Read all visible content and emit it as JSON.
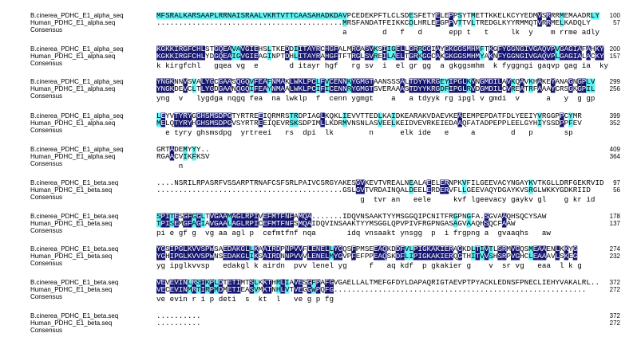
{
  "blocks": [
    {
      "rows": [
        {
          "name": "B.cinerea_PDHC_E1_alpha_seq",
          "sequence": "MFSRALKARSAAPLRRNAISRAALVKRTVTTCAASAHADKDAVPCEDEKPFTLCLSDESFETYELEPPSYTMETTKKELKCYYEDMVSRRRMEMAADRLY",
          "end": "100"
        },
        {
          "name": "Human_PDHC_E1_alpha.seq",
          "sequence": "..........................................MRSFANDATFEIKKCDLHRLEEGPPVTTVLTREDGLKYYRMMQTVRRMELKADQLY",
          "end": "57"
        }
      ],
      "consensus_label": "Consensus",
      "consensus": "                                          a        d   f   d      epp t   t     lk  y    m rrme adly"
    },
    {
      "rows": [
        {
          "name": "B.cinerea_PDHC_E1_alpha_seq",
          "sequence": "KGKKIRGFCHLSTGQEAVAVGIEHSLTKEDDIITAYRCHGFALMRGASVKSIIGELLGRRGGIAYGKGGSMHMFTKGFYGGNGIVGAQVPVGAGIAFAHKY",
          "end": "200"
        },
        {
          "name": "Human_PDHC_E1_alpha.seq",
          "sequence": "KGKKIRGFCHLYDGQEAIGVGIEAGINPTDHLITAYRAHGFTFTRGLSVREILAELTGRKGGCAKGKGGSMHMYAKNFYGGNGIVGAQVPLGAGIALACKY",
          "end": "157"
        }
      ],
      "consensus_label": "Consensus",
      "consensus": "k kirgfchl   gqea vg  e       d itayr hgf   rg sv  i  el gr gg  a gkggsmhm  k fyggngi gaqvp gag ia  ky"
    },
    {
      "rows": [
        {
          "name": "B.cinerea_PDHC_E1_alpha_seq",
          "sequence": "YNGKNNVSVALYGCGAASQGQVFEAFNMAKLWKLPCLFVCENNKYGMGTAANSSSALTDYYKRGEYIPGLKVNGMDILAVKQAVKHAKEYANAGNGPLV",
          "end": "299"
        },
        {
          "name": "Human_PDHC_E1_alpha.seq",
          "sequence": "YNGKDEVCLTLYGDGAANQGQIFEAYNMAALWKLPCIFICENNRYGMGTSVERAAASTDYYKRGDFIPGLRVDGMDILCVREATRFAAAYCRSGKGPIL",
          "end": "256"
        }
      ],
      "consensus_label": "Consensus",
      "consensus": "yng  v   lygdga nqgq fea  na lwklp  f  cenn ygmgt    a   a tdyyk rg ipgl v gmdi  v      a   y  g gp"
    },
    {
      "rows": [
        {
          "name": "B.cinerea_PDHC_E1_alpha_seq",
          "sequence": "LEYVTYRYGGHSMSDPGTYRTREEIQRMRSTRDPIAGLKQKLIEVVTTEDLKAIDKEARAKVDAEVKEAEEMPEPDATFDLYEEIYVRGGPPCYMR",
          "end": "399"
        },
        {
          "name": "Human_PDHC_E1_alpha.seq",
          "sequence": "MELQTYRYHGHSMSDPGVSYRTREEIQEVRSKSDPIMLLKDRMVNSNLASVEELKEIDVEVRKEIEDAAQFATADPEPPLEELGYHIYSSDPPFEV",
          "end": "352"
        }
      ],
      "consensus_label": "Consensus",
      "consensus": "  e tyry ghsmsdpg  yrtreei   rs  dpi  lk        n      elk ide   e     a        d   p       sp"
    },
    {
      "rows": [
        {
          "name": "B.cinerea_PDHC_E1_alpha_seq",
          "sequence": "GRTADEMYYY..",
          "end": "409"
        },
        {
          "name": "Human_PDHC_E1_alpha.seq",
          "sequence": "RGAACVIKFKSV",
          "end": "364"
        }
      ],
      "consensus_label": "Consensus",
      "consensus": "     n"
    },
    {
      "rows": [
        {
          "name": "B.cinerea_PDHC_E1_beta.seq",
          "sequence": "....NSRILRPASRFVSSARPTRNAFCSFSRLPAIVCSRGYAKESGVKEVTVREALNEALAEELERNPKVFILGEEVACYNGAYKVTKGLLDRFGEKRVID",
          "end": "97"
        },
        {
          "name": "Human_PDHC_E1_beta.seq",
          "sequence": "..........................................GSLGVTVRDAINQALDEELERDERVFLLGEEVAQYDGAYKVSRGLWKKYGDKRIID",
          "end": "56"
        }
      ],
      "consensus_label": "Consensus",
      "consensus": "                                              g  tvr an   eele     kvf lgeevacy gaykv gl    g kr id"
    },
    {
      "rows": [
        {
          "name": "B.cinerea_PDHC_E1_beta.seq",
          "sequence": "SPITESGFGGLTVGAAMAGLRPIVEFMTFNFAMQA.......IDQVNSAAKTYYMSGGQIPCNITFRGPNGFA.SGVAAQHSQCYSAW",
          "end": "178"
        },
        {
          "name": "Human_PDHC_E1_beta.seq",
          "sequence": "TPISEMGFAGIAVGAALAGLRPICEFMTFNFSMQAIDQVINSAAKTYYMSGGLQPVPIVFRGPNGASAGVAAQHSQCFAAW",
          "end": "137"
        }
      ],
      "consensus_label": "Consensus",
      "consensus": "pi e gf g  vg aa agl p  cefmtfnf nqa       idq vnsaakt ynsgg  p  i frgpng a  gvaaqhs   aw"
    },
    {
      "rows": [
        {
          "name": "B.cinerea_PDHC_E1_beta.seq",
          "sequence": "YGSIPGLKVVSPWSAEDAKGLLKAAIRDPNPVVFLENELLYGQSFPMSEEAQKDDFVLPIGKAKIERAGKDLTIVTLSRMVGQSMEAAENLKKYG",
          "end": "274"
        },
        {
          "name": "Human_PDHC_E1_beta.seq",
          "sequence": "YGHIPGLKVVSPWNSEDAKGLIKSAIRDNNPVVVLENELMYGVPFEFPPEAQSKDFLIPIGKAKIERQGTHITVVSHSRPVGHCLEAAAVLSKEG",
          "end": "232"
        }
      ],
      "consensus_label": "Consensus",
      "consensus": "yg ipglkvvsp   edakgl k airdn  pvv lenel yg     f   aq kdf  p gkakier g    v  sr vg   eaa  l k g"
    },
    {
      "rows": [
        {
          "name": "B.cinerea_PDHC_E1_beta.seq",
          "sequence": "VEVEVINLRSIKPLDTETIMTSLKKTHRLIAVESGFPAFGVGAELLALTMEFGFDYLDAPAQRIGTAEVPTPYACKLEDNSFPNECLIEHYVAKALRL..",
          "end": "372"
        },
        {
          "name": "Human_PDHC_E1_beta.seq",
          "sequence": "VECEVINMRTIRPMDMETIEASVMKTNHLVTVEGGWPQFG.........................................................",
          "end": "272"
        }
      ],
      "consensus_label": "Consensus",
      "consensus": "ve evin r i p deti  s  kt  l   ve g p fg"
    },
    {
      "rows": [
        {
          "name": "B.cinerea_PDHC_E1_beta.seq",
          "sequence": "..........",
          "end": "372"
        },
        {
          "name": "Human_PDHC_E1_beta.seq",
          "sequence": "..........",
          "end": "272"
        }
      ],
      "consensus_label": "Consensus"
    }
  ]
}
